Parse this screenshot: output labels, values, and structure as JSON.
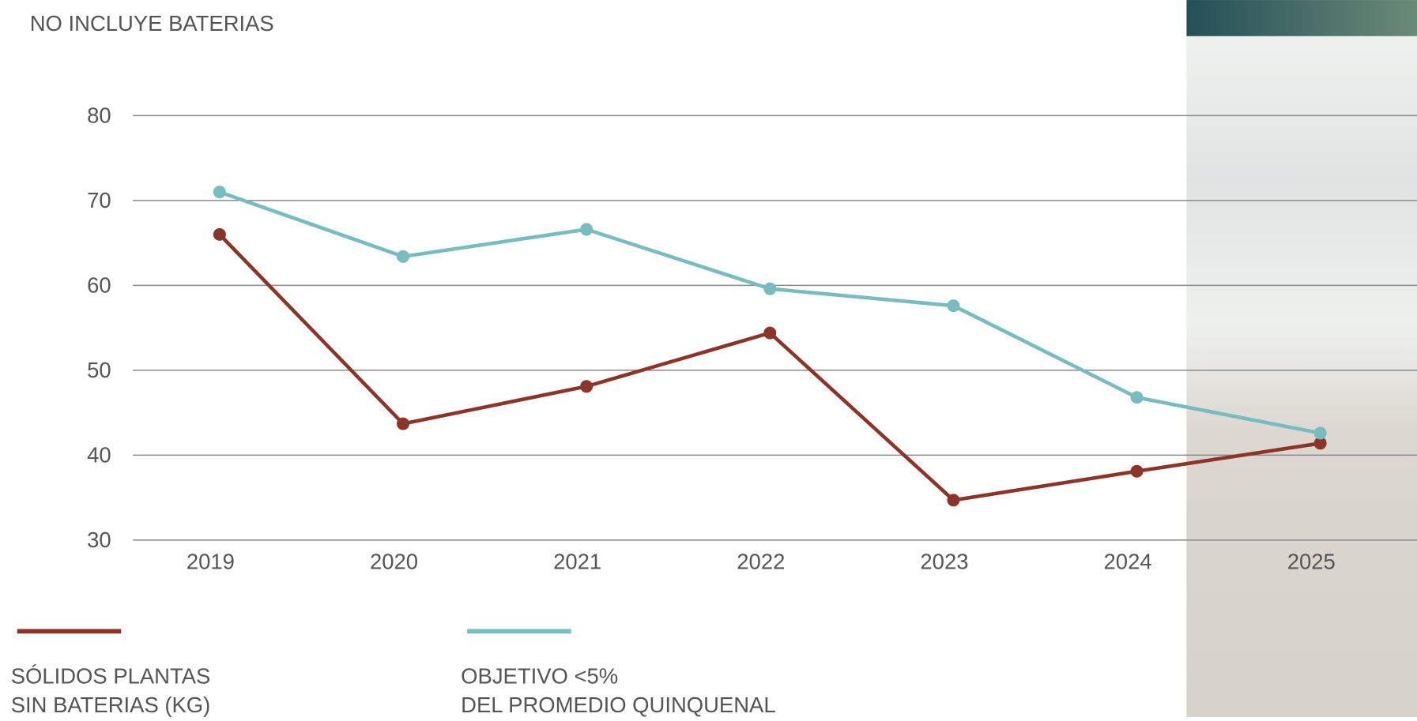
{
  "chart_data": {
    "type": "line",
    "subtitle": "NO INCLUYE BATERIAS",
    "categories": [
      "2019",
      "2020",
      "2021",
      "2022",
      "2023",
      "2024",
      "2025"
    ],
    "series": [
      {
        "name": "SÓLIDOS PLANTAS\nSIN BATERIAS (KG)",
        "color": "#8b3427",
        "values": [
          66,
          43.7,
          48.1,
          54.4,
          34.7,
          38.1,
          41.4
        ]
      },
      {
        "name": "OBJETIVO <5%\nDEL PROMEDIO QUINQUENAL",
        "color": "#77bcbf",
        "values": [
          71,
          63.4,
          66.6,
          59.6,
          57.6,
          46.8,
          42.6
        ]
      }
    ],
    "ylim": [
      30,
      80
    ],
    "yticks": [
      30,
      40,
      50,
      60,
      70,
      80
    ],
    "grid": true
  }
}
